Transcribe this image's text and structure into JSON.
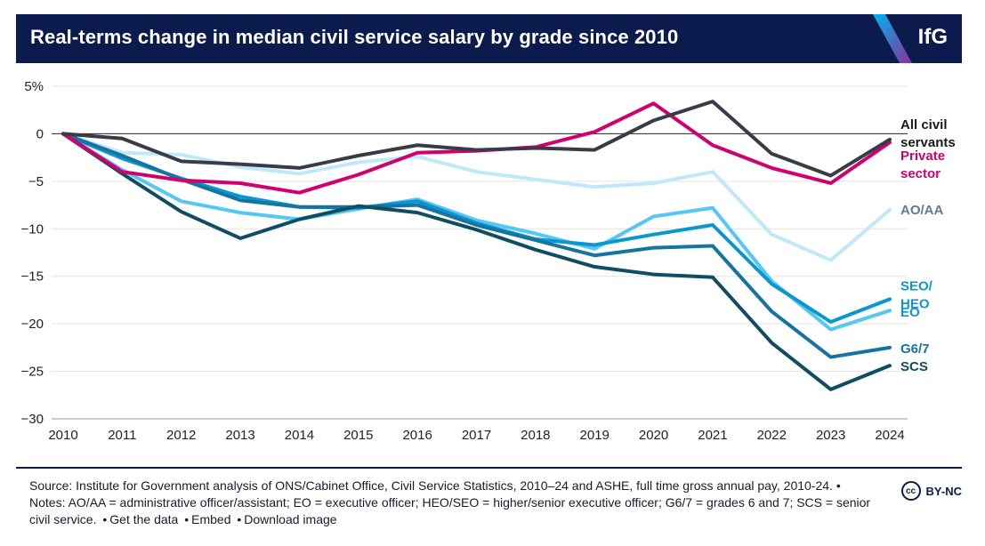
{
  "header": {
    "title": "Real-terms change in median civil service salary by grade since 2010",
    "logo": "IfG"
  },
  "chart_data": {
    "type": "line",
    "title": "Real-terms change in median civil service salary by grade since 2010",
    "xlabel": "",
    "ylabel": "",
    "ylim": [
      -30,
      5
    ],
    "yticks": [
      5,
      0,
      -5,
      -10,
      -15,
      -20,
      -25,
      -30
    ],
    "ytick_labels": [
      "5%",
      "0",
      "−5",
      "−10",
      "−15",
      "−20",
      "−25",
      "−30"
    ],
    "x": [
      "2010",
      "2011",
      "2012",
      "2013",
      "2014",
      "2015",
      "2016",
      "2017",
      "2018",
      "2019",
      "2020",
      "2021",
      "2022",
      "2023",
      "2024"
    ],
    "grid": true,
    "series": [
      {
        "name": "AO/AA",
        "label_lines": [
          "AO/AA"
        ],
        "color": "#bfe8fb",
        "label_color": "#5f7d96",
        "values": [
          0,
          -2.0,
          -2.2,
          -3.5,
          -4.2,
          -3.0,
          -2.4,
          -4.0,
          -4.8,
          -5.6,
          -5.2,
          -4.0,
          -10.6,
          -13.3,
          -8.0
        ]
      },
      {
        "name": "EO",
        "label_lines": [
          "EO"
        ],
        "color": "#56c6f2",
        "label_color": "#0a96cf",
        "values": [
          0,
          -3.8,
          -7.1,
          -8.3,
          -9.0,
          -7.9,
          -6.9,
          -9.1,
          -10.5,
          -12.1,
          -8.7,
          -7.8,
          -15.5,
          -20.6,
          -18.6
        ]
      },
      {
        "name": "SEO/HEO",
        "label_lines": [
          "SEO/",
          "HEO"
        ],
        "color": "#0a96cf",
        "label_color": "#0a96cf",
        "values": [
          0,
          -2.6,
          -4.7,
          -6.6,
          -7.7,
          -7.8,
          -7.1,
          -9.4,
          -11.1,
          -11.7,
          -10.6,
          -9.6,
          -15.8,
          -19.8,
          -17.4
        ]
      },
      {
        "name": "G6/7",
        "label_lines": [
          "G6/7"
        ],
        "color": "#1774a1",
        "label_color": "#1774a1",
        "values": [
          0,
          -2.3,
          -4.8,
          -7.0,
          -7.7,
          -7.7,
          -7.5,
          -9.6,
          -11.2,
          -12.8,
          -12.0,
          -11.8,
          -18.7,
          -23.5,
          -22.5
        ]
      },
      {
        "name": "SCS",
        "label_lines": [
          "SCS"
        ],
        "color": "#0f4d63",
        "label_color": "#0f4d63",
        "values": [
          0,
          -4.2,
          -8.2,
          -11.0,
          -9.0,
          -7.6,
          -8.3,
          -10.1,
          -12.2,
          -14.0,
          -14.8,
          -15.1,
          -22.0,
          -26.9,
          -24.4
        ]
      },
      {
        "name": "Private sector",
        "label_lines": [
          "Private",
          "sector"
        ],
        "color": "#d0006f",
        "label_color": "#d0006f",
        "values": [
          0,
          -4.0,
          -4.9,
          -5.2,
          -6.2,
          -4.3,
          -2.0,
          -1.8,
          -1.4,
          0.2,
          3.2,
          -1.2,
          -3.6,
          -5.2,
          -0.9
        ]
      },
      {
        "name": "All civil servants",
        "label_lines": [
          "All civil",
          "servants"
        ],
        "color": "#383c47",
        "label_color": "#1a1a1a",
        "values": [
          0,
          -0.5,
          -2.9,
          -3.2,
          -3.6,
          -2.3,
          -1.2,
          -1.7,
          -1.5,
          -1.7,
          1.4,
          3.4,
          -2.1,
          -4.4,
          -0.6
        ]
      }
    ]
  },
  "footer": {
    "source_text": "Source: Institute for Government analysis of ONS/Cabinet Office, Civil Service Statistics, 2010–24 and ASHE, full time gross annual pay, 2010-24. • Notes: AO/AA = administrative officer/assistant; EO = executive officer; HEO/SEO = higher/senior executive officer; G6/7 = grades 6 and 7; SCS = senior civil service.",
    "links": [
      "Get the data",
      "Embed",
      "Download image"
    ],
    "license": "BY-NC",
    "cc": "cc"
  },
  "colors": {
    "header_bg": "#0b1b4d",
    "accent_cyan": "#00a8e8",
    "accent_purple": "#7b2d8e"
  }
}
